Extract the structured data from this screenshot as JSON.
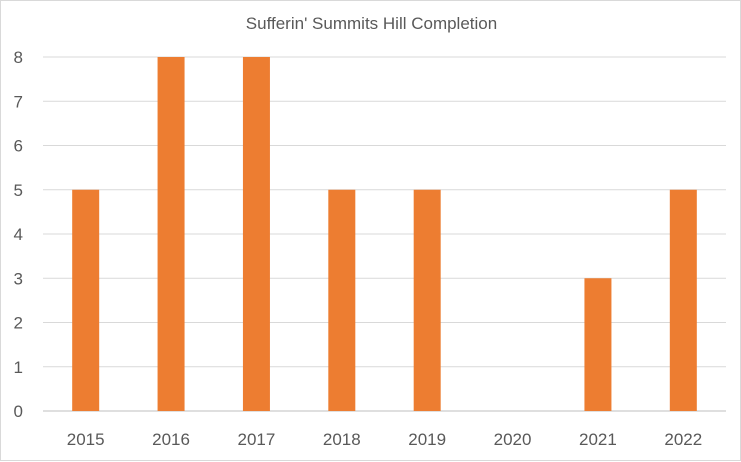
{
  "chart_data": {
    "type": "bar",
    "title": "Sufferin' Summits Hill Completion",
    "categories": [
      "2015",
      "2016",
      "2017",
      "2018",
      "2019",
      "2020",
      "2021",
      "2022"
    ],
    "values": [
      5,
      8,
      8,
      5,
      5,
      0,
      3,
      5
    ],
    "ylim": [
      0,
      8
    ],
    "yticks": [
      0,
      1,
      2,
      3,
      4,
      5,
      6,
      7,
      8
    ],
    "grid": true,
    "legend": "none",
    "xlabel": "",
    "ylabel": "",
    "bar_color": "#ED7D31"
  }
}
